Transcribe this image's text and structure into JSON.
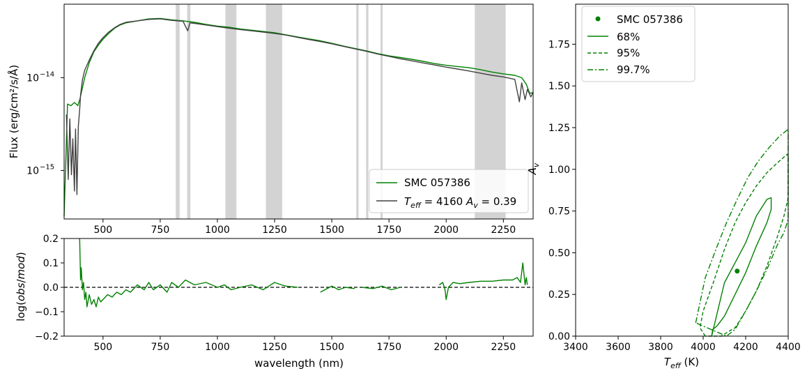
{
  "colors": {
    "model_line": "#008000",
    "observed_line": "#404040",
    "mask_band": "#d3d3d3",
    "zero_line": "#000000",
    "frame": "#000000"
  },
  "chart_data": [
    {
      "id": "spectrum",
      "type": "line",
      "title": "",
      "xlabel": "",
      "ylabel": "Flux (erg/cm²/s/Å)",
      "yscale": "log",
      "xlim": [
        330,
        2380
      ],
      "ylim": [
        3e-16,
        6.2e-14
      ],
      "x_ticks": [
        500,
        750,
        1000,
        1250,
        1500,
        1750,
        2000,
        2250
      ],
      "x_tick_labels": [
        "500",
        "750",
        "1000",
        "1250",
        "1500",
        "1750",
        "2000",
        "2250"
      ],
      "y_ticks": [
        1e-15,
        1e-14
      ],
      "y_tick_labels": [
        {
          "base": "10",
          "exp": "−15"
        },
        {
          "base": "10",
          "exp": "−14"
        }
      ],
      "grid": false,
      "legend_position": "bottom-right",
      "legend": [
        {
          "label": "SMC 057386",
          "style": "solid",
          "color": "#008000"
        },
        {
          "label_parts": [
            "T",
            "eff",
            " = 4160 ",
            "A",
            "v",
            " = 0.39"
          ],
          "style": "solid",
          "color": "#404040"
        }
      ],
      "masked_regions": [
        [
          818,
          835
        ],
        [
          868,
          882
        ],
        [
          1035,
          1083
        ],
        [
          1212,
          1283
        ],
        [
          1607,
          1617
        ],
        [
          1650,
          1660
        ],
        [
          1713,
          1722
        ],
        [
          2125,
          2260
        ]
      ],
      "series": [
        {
          "name": "SMC 057386",
          "color": "#008000",
          "x": [
            330,
            345,
            360,
            375,
            390,
            400,
            420,
            440,
            460,
            480,
            500,
            525,
            550,
            575,
            600,
            650,
            700,
            750,
            800,
            850,
            900,
            950,
            1000,
            1050,
            1100,
            1150,
            1200,
            1250,
            1300,
            1350,
            1400,
            1450,
            1500,
            1550,
            1600,
            1650,
            1700,
            1750,
            1800,
            1850,
            1900,
            1950,
            2000,
            2050,
            2100,
            2150,
            2200,
            2250,
            2300,
            2330,
            2350,
            2365,
            2380
          ],
          "y": [
            3.2e-16,
            5.2e-15,
            5e-15,
            5.4e-15,
            5e-15,
            6e-15,
            1e-14,
            1.45e-14,
            1.9e-14,
            2.25e-14,
            2.6e-14,
            3e-14,
            3.4e-14,
            3.7e-14,
            3.9e-14,
            4.1e-14,
            4.3e-14,
            4.35e-14,
            4.2e-14,
            4.1e-14,
            3.95e-14,
            3.75e-14,
            3.6e-14,
            3.5e-14,
            3.35e-14,
            3.25e-14,
            3.15e-14,
            3.05e-14,
            2.9e-14,
            2.75e-14,
            2.62e-14,
            2.5e-14,
            2.35e-14,
            2.2e-14,
            2.07e-14,
            1.95e-14,
            1.82e-14,
            1.72e-14,
            1.65e-14,
            1.58e-14,
            1.5e-14,
            1.42e-14,
            1.36e-14,
            1.32e-14,
            1.28e-14,
            1.22e-14,
            1.15e-14,
            1.1e-14,
            1.06e-14,
            1e-14,
            8.5e-15,
            6.8e-15,
            6.9e-15
          ]
        },
        {
          "name": "T_eff = 4160 A_v = 0.39",
          "color": "#404040",
          "x": [
            340,
            348,
            355,
            362,
            368,
            375,
            380,
            386,
            392,
            398,
            402,
            410,
            420,
            440,
            460,
            480,
            500,
            525,
            550,
            575,
            600,
            650,
            700,
            750,
            800,
            850,
            870,
            880,
            900,
            950,
            1000,
            1050,
            1100,
            1150,
            1200,
            1250,
            1300,
            1350,
            1400,
            1450,
            1500,
            1550,
            1600,
            1650,
            1700,
            1750,
            1800,
            1850,
            1900,
            1950,
            2000,
            2050,
            2100,
            2150,
            2200,
            2250,
            2300,
            2320,
            2330,
            2345,
            2355,
            2370,
            2380
          ],
          "y": [
            4e-15,
            8e-16,
            3.6e-15,
            9e-16,
            2.2e-15,
            6e-16,
            2.8e-15,
            5.5e-16,
            3e-15,
            4.5e-15,
            6.5e-15,
            9.5e-15,
            1.2e-14,
            1.55e-14,
            1.95e-14,
            2.35e-14,
            2.7e-14,
            3.1e-14,
            3.45e-14,
            3.75e-14,
            3.95e-14,
            4.1e-14,
            4.25e-14,
            4.3e-14,
            4.15e-14,
            4.05e-14,
            3.2e-14,
            3.9e-14,
            3.85e-14,
            3.7e-14,
            3.55e-14,
            3.42e-14,
            3.3e-14,
            3.2e-14,
            3.1e-14,
            3e-14,
            2.88e-14,
            2.72e-14,
            2.58e-14,
            2.45e-14,
            2.32e-14,
            2.18e-14,
            2.05e-14,
            1.93e-14,
            1.8e-14,
            1.7e-14,
            1.6e-14,
            1.52e-14,
            1.44e-14,
            1.37e-14,
            1.3e-14,
            1.24e-14,
            1.18e-14,
            1.12e-14,
            1.06e-14,
            1.02e-14,
            9.6e-15,
            5.5e-15,
            8.8e-15,
            5.8e-15,
            7.5e-15,
            6.2e-15,
            7e-15
          ]
        }
      ]
    },
    {
      "id": "residuals",
      "type": "line",
      "title": "",
      "xlabel": "wavelength (nm)",
      "ylabel_parts": [
        "log(",
        "obs",
        "/",
        "mod",
        ")"
      ],
      "xlim": [
        330,
        2380
      ],
      "ylim": [
        -0.2,
        0.2
      ],
      "x_ticks": [
        500,
        750,
        1000,
        1250,
        1500,
        1750,
        2000,
        2250
      ],
      "x_tick_labels": [
        "500",
        "750",
        "1000",
        "1250",
        "1500",
        "1750",
        "2000",
        "2250"
      ],
      "y_ticks": [
        -0.2,
        -0.1,
        0.0,
        0.1,
        0.2
      ],
      "y_tick_labels": [
        "−0.2",
        "−0.1",
        "0.0",
        "0.1",
        "0.2"
      ],
      "zero_line": {
        "y": 0.0,
        "style": "dashed"
      },
      "grid": false,
      "series": [
        {
          "name": "",
          "color": "#008000",
          "segments": [
            {
              "x": [
                398,
                402,
                405,
                410,
                415,
                420,
                425,
                430,
                440,
                450,
                460,
                470,
                480,
                490,
                500,
                520,
                540,
                560,
                580,
                600,
                620,
                650,
                680,
                700,
                720,
                750,
                780,
                800,
                830,
                860,
                900,
                950,
                1000,
                1030,
                1060,
                1100,
                1150,
                1200,
                1250,
                1280,
                1300,
                1350
              ],
              "y": [
                0.2,
                0.03,
                0.08,
                -0.01,
                0.02,
                -0.05,
                -0.02,
                -0.08,
                -0.03,
                -0.07,
                -0.05,
                -0.08,
                -0.04,
                -0.06,
                -0.05,
                -0.03,
                -0.04,
                -0.02,
                -0.03,
                -0.01,
                -0.02,
                0.01,
                -0.01,
                0.02,
                -0.01,
                0.01,
                -0.02,
                0.02,
                0.0,
                0.03,
                0.01,
                0.02,
                0.0,
                0.01,
                -0.01,
                0.0,
                0.01,
                -0.01,
                0.02,
                0.01,
                0.005,
                0.0
              ]
            },
            {
              "x": [
                1450,
                1500,
                1530,
                1560,
                1600
              ],
              "y": [
                -0.02,
                0.005,
                -0.01,
                0.0,
                -0.005
              ]
            },
            {
              "x": [
                1630,
                1680,
                1720,
                1760,
                1800
              ],
              "y": [
                0.0,
                -0.005,
                0.005,
                -0.01,
                0.0
              ]
            },
            {
              "x": [
                1970,
                1985,
                1995,
                2000,
                2010,
                2030,
                2060,
                2100,
                2150,
                2200,
                2250,
                2290,
                2310,
                2325,
                2335,
                2345,
                2350,
                2355
              ],
              "y": [
                0.01,
                0.02,
                -0.01,
                -0.05,
                0.0,
                0.02,
                0.015,
                0.02,
                0.025,
                0.025,
                0.03,
                0.03,
                0.04,
                0.02,
                0.1,
                0.01,
                0.04,
                0.01
              ]
            }
          ]
        }
      ]
    },
    {
      "id": "contours",
      "type": "line",
      "title": "",
      "xlabel_parts": [
        "T",
        "eff",
        " (K)"
      ],
      "ylabel_parts": [
        "A",
        "v"
      ],
      "xlim": [
        3400,
        4400
      ],
      "ylim": [
        0.0,
        1.99
      ],
      "x_ticks": [
        3400,
        3600,
        3800,
        4000,
        4200,
        4400
      ],
      "x_tick_labels": [
        "3400",
        "3600",
        "3800",
        "4000",
        "4200",
        "4400"
      ],
      "y_ticks": [
        0.0,
        0.25,
        0.5,
        0.75,
        1.0,
        1.25,
        1.5,
        1.75
      ],
      "y_tick_labels": [
        "0.00",
        "0.25",
        "0.50",
        "0.75",
        "1.00",
        "1.25",
        "1.50",
        "1.75"
      ],
      "grid": false,
      "legend_position": "top-left",
      "legend": [
        {
          "label": "SMC 057386",
          "style": "point",
          "color": "#008000"
        },
        {
          "label": "68%",
          "style": "solid",
          "color": "#008000"
        },
        {
          "label": "95%",
          "style": "dashed",
          "color": "#008000"
        },
        {
          "label": "99.7%",
          "style": "dashdot",
          "color": "#008000"
        }
      ],
      "best_fit": {
        "teff": 4160,
        "av": 0.39
      },
      "contours": [
        {
          "level": "68%",
          "style": "solid",
          "teff": [
            4040,
            4045,
            4065,
            4100,
            4150,
            4200,
            4250,
            4300,
            4320,
            4320,
            4300,
            4250,
            4200,
            4150,
            4100,
            4040
          ],
          "av": [
            0.0,
            0.04,
            0.06,
            0.12,
            0.25,
            0.38,
            0.54,
            0.68,
            0.76,
            0.83,
            0.82,
            0.72,
            0.56,
            0.44,
            0.32,
            0.0
          ]
        },
        {
          "level": "95%",
          "style": "dashed",
          "teff": [
            4010,
            3985,
            4000,
            4050,
            4100,
            4150,
            4200,
            4250,
            4300,
            4350,
            4395,
            4400,
            4400,
            4380,
            4350,
            4300,
            4250,
            4200,
            4150,
            4110,
            4085,
            4010
          ],
          "av": [
            0.0,
            0.05,
            0.15,
            0.33,
            0.52,
            0.68,
            0.8,
            0.9,
            0.98,
            1.04,
            1.09,
            1.08,
            0.83,
            0.72,
            0.6,
            0.42,
            0.27,
            0.15,
            0.05,
            0.02,
            0.0,
            0.0
          ]
        },
        {
          "level": "99.7%",
          "style": "dashdot",
          "teff": [
            3965,
            4010,
            4060,
            4110,
            4160,
            4210,
            4260,
            4310,
            4360,
            4400,
            4400,
            4380,
            4350,
            4300,
            4250,
            4200,
            4150,
            4110
          ],
          "av": [
            0.08,
            0.35,
            0.52,
            0.68,
            0.82,
            0.95,
            1.05,
            1.13,
            1.2,
            1.24,
            0.7,
            0.62,
            0.55,
            0.4,
            0.27,
            0.15,
            0.04,
            0.0
          ]
        }
      ]
    }
  ]
}
